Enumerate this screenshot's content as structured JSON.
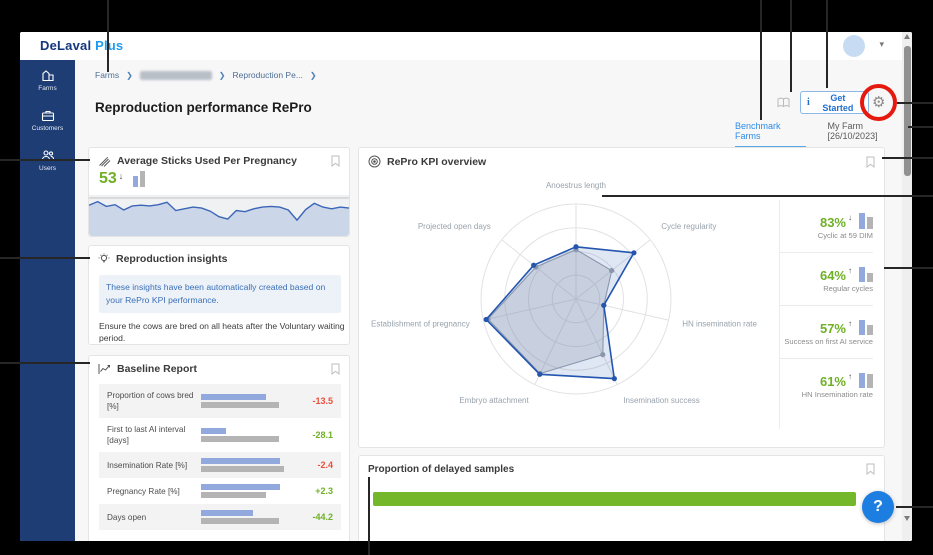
{
  "brand": {
    "name_dark": "DeLaval",
    "name_light": "Plus"
  },
  "sidebar": {
    "items": [
      {
        "label": "Farms"
      },
      {
        "label": "Customers"
      },
      {
        "label": "Users"
      }
    ]
  },
  "breadcrumb": {
    "farms": "Farms",
    "current": "Reproduction Pe..."
  },
  "page": {
    "title": "Reproduction performance RePro"
  },
  "actions": {
    "get_started": "Get Started",
    "info_glyph": "i",
    "gear_glyph": "⚙",
    "help_glyph": "?"
  },
  "tabs": [
    {
      "label": "Benchmark Farms"
    },
    {
      "label": "My Farm [26/10/2023]"
    }
  ],
  "cards": {
    "avg_sticks": {
      "title": "Average Sticks Used Per Pregnancy",
      "value": "53",
      "arrow": "↓"
    },
    "insights": {
      "title": "Reproduction insights",
      "info": "These insights have been automatically created based on your RePro KPI performance.",
      "body": "Ensure the cows are bred on all heats after the Voluntary waiting period."
    },
    "baseline": {
      "title": "Baseline Report",
      "rows": [
        {
          "label": "Proportion of cows bred [%]",
          "value": "-13.5",
          "color": "#e8503c",
          "blue": 68,
          "gray": 81
        },
        {
          "label": "First to last AI interval [days]",
          "value": "-28.1",
          "color": "#6fb026",
          "blue": 26,
          "gray": 81
        },
        {
          "label": "Insemination Rate [%]",
          "value": "-2.4",
          "color": "#e8503c",
          "blue": 82,
          "gray": 86
        },
        {
          "label": "Pregnancy Rate [%]",
          "value": "+2.3",
          "color": "#6fb026",
          "blue": 82,
          "gray": 68
        },
        {
          "label": "Days open",
          "value": "-44.2",
          "color": "#6fb026",
          "blue": 54,
          "gray": 81
        }
      ]
    },
    "kpi_overview": {
      "title": "RePro KPI overview",
      "kpis": [
        {
          "value": "83%",
          "arrow": "↓",
          "label": "Cyclic at 59 DIM",
          "blue": 16,
          "gray": 12
        },
        {
          "value": "64%",
          "arrow": "↑",
          "label": "Regular cycles",
          "blue": 15,
          "gray": 9
        },
        {
          "value": "57%",
          "arrow": "↑",
          "label": "Success on first AI service",
          "blue": 15,
          "gray": 10
        },
        {
          "value": "61%",
          "arrow": "↑",
          "label": "HN Insemination rate",
          "blue": 15,
          "gray": 14
        }
      ]
    },
    "delayed": {
      "title": "Proportion of delayed samples"
    }
  },
  "chart_data": [
    {
      "type": "area",
      "name": "average-sticks-trend",
      "title": "Average Sticks Used Per Pregnancy",
      "current_value": 53,
      "depths": [
        0.3,
        0.15,
        0.35,
        0.28,
        0.5,
        0.33,
        0.3,
        0.33,
        0.28,
        0.18,
        0.52,
        0.45,
        0.38,
        0.42,
        0.55,
        0.78,
        0.88,
        0.52,
        0.57,
        0.45,
        0.38,
        0.35,
        0.38,
        0.5,
        0.92,
        0.48,
        0.22,
        0.38,
        0.45,
        0.38,
        0.42
      ],
      "line_color": "#3b66b8",
      "fill_color": "#ccd6e9",
      "reference_line": true
    },
    {
      "type": "radar",
      "name": "repro-kpi-radar",
      "title": "RePro KPI overview",
      "axes": [
        "Anoestrus length",
        "Cycle regularity",
        "HN insemination rate",
        "Insemination success",
        "Embryo attachment",
        "Establishment of pregnancy",
        "Projected open days"
      ],
      "rings": 4,
      "range": [
        0,
        1
      ],
      "series": [
        {
          "name": "benchmark",
          "color": "#9aa2ac",
          "fill": "rgba(154,162,172,0.28)",
          "values": [
            0.52,
            0.48,
            0.3,
            0.65,
            0.87,
            0.95,
            0.54
          ]
        },
        {
          "name": "farm",
          "color": "#2456b0",
          "fill": "rgba(36,86,176,0.14)",
          "values": [
            0.55,
            0.78,
            0.3,
            0.93,
            0.88,
            0.97,
            0.57
          ]
        }
      ]
    },
    {
      "type": "bar",
      "name": "proportion-of-delayed-samples",
      "title": "Proportion of delayed samples",
      "value_pct": 97,
      "color": "#74b72a"
    }
  ]
}
